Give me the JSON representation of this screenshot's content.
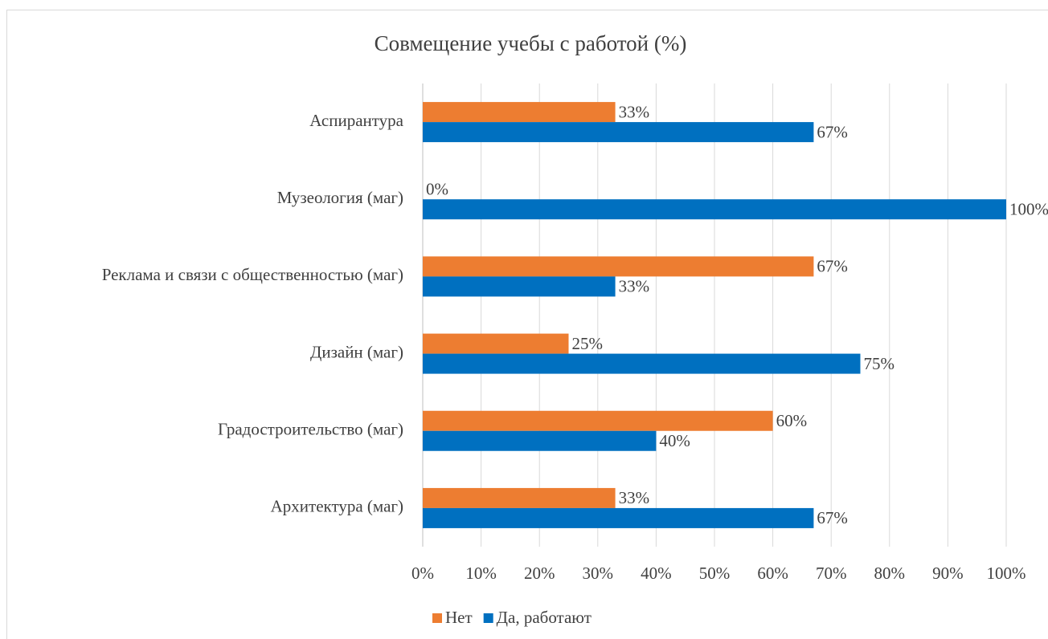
{
  "chart_data": {
    "type": "barh",
    "title": "Совмещение учебы с работой (%)",
    "categories": [
      "Аспирантура",
      "Музеология (маг)",
      "Реклама и связи с общественностью (маг)",
      "Дизайн (маг)",
      "Градостроительство (маг)",
      "Архитектура (маг)"
    ],
    "series": [
      {
        "name": "Нет",
        "color": "#ED7D31",
        "values": [
          33,
          0,
          67,
          25,
          60,
          33
        ],
        "value_labels": [
          "33%",
          "0%",
          "67%",
          "25%",
          "60%",
          "33%"
        ]
      },
      {
        "name": "Да, работают",
        "color": "#0070C0",
        "values": [
          67,
          100,
          33,
          75,
          40,
          67
        ],
        "value_labels": [
          "67%",
          "100%",
          "33%",
          "75%",
          "40%",
          "67%"
        ]
      }
    ],
    "xlim": [
      0,
      100
    ],
    "xticks": [
      {
        "value": 0,
        "label": "0%"
      },
      {
        "value": 10,
        "label": "10%"
      },
      {
        "value": 20,
        "label": "20%"
      },
      {
        "value": 30,
        "label": "30%"
      },
      {
        "value": 40,
        "label": "40%"
      },
      {
        "value": 50,
        "label": "50%"
      },
      {
        "value": 60,
        "label": "60%"
      },
      {
        "value": 70,
        "label": "70%"
      },
      {
        "value": 80,
        "label": "80%"
      },
      {
        "value": 90,
        "label": "90%"
      },
      {
        "value": 100,
        "label": "100%"
      }
    ],
    "grid": true,
    "legend": "bottom"
  }
}
